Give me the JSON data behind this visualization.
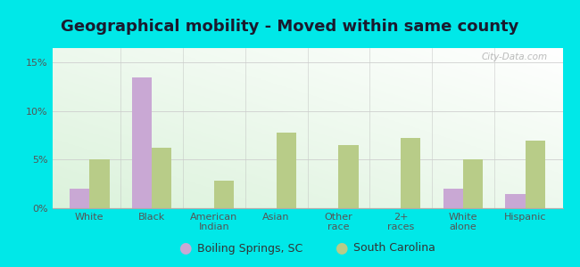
{
  "title": "Geographical mobility - Moved within same county",
  "categories": [
    "White",
    "Black",
    "American\nIndian",
    "Asian",
    "Other\nrace",
    "2+\nraces",
    "White\nalone",
    "Hispanic"
  ],
  "boiling_springs": [
    2.0,
    13.5,
    0.0,
    0.0,
    0.0,
    0.0,
    2.0,
    1.5
  ],
  "south_carolina": [
    5.0,
    6.2,
    2.8,
    7.8,
    6.5,
    7.2,
    5.0,
    7.0
  ],
  "color_boiling": "#c9a8d4",
  "color_sc": "#b8cc88",
  "background_fig": "#00e8e8",
  "yticks": [
    0,
    5,
    10,
    15
  ],
  "ylim": [
    0,
    16.5
  ],
  "legend_boiling": "Boiling Springs, SC",
  "legend_sc": "South Carolina",
  "bar_width": 0.32,
  "grid_color": "#cccccc",
  "title_fontsize": 13,
  "tick_fontsize": 8,
  "legend_fontsize": 9,
  "watermark": "City-Data.com"
}
